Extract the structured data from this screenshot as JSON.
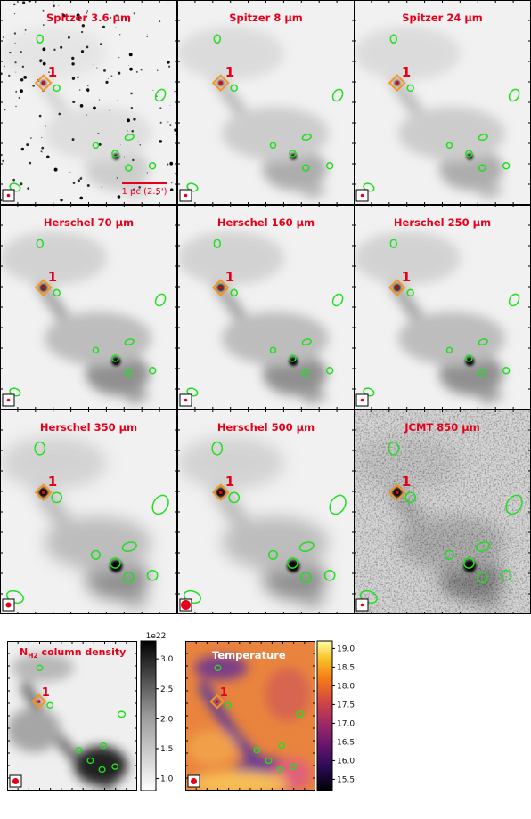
{
  "chart_data": {
    "type": "image-grid",
    "panels": [
      {
        "title": "Spitzer 3.6 µm",
        "style": "stars",
        "beam": "small"
      },
      {
        "title": "Spitzer 8 µm",
        "style": "mid",
        "beam": "small"
      },
      {
        "title": "Spitzer 24 µm",
        "style": "mid",
        "beam": "small"
      },
      {
        "title": "Herschel 70 µm",
        "style": "smooth",
        "beam": "small"
      },
      {
        "title": "Herschel 160 µm",
        "style": "smooth",
        "beam": "small"
      },
      {
        "title": "Herschel 250 µm",
        "style": "smooth",
        "beam": "small"
      },
      {
        "title": "Herschel 350 µm",
        "style": "smooth",
        "beam": "medium"
      },
      {
        "title": "Herschel 500 µm",
        "style": "smooth",
        "beam": "large"
      },
      {
        "title": "JCMT 850 µm",
        "style": "noisy",
        "beam": "small"
      }
    ],
    "source_label": "1",
    "scale_bar": "1 pc (2.5')",
    "column_density": {
      "title_base": "N",
      "title_sub": "H2",
      "title_rest": " column density",
      "exponent": "1e22",
      "ticks": [
        "3.0",
        "2.5",
        "2.0",
        "1.5",
        "1.0"
      ],
      "tick_values": [
        3.0,
        2.5,
        2.0,
        1.5,
        1.0
      ],
      "range": [
        0.8,
        3.3
      ],
      "colormap": "gray_r"
    },
    "temperature": {
      "title": "Temperature",
      "ticks": [
        "19.0",
        "18.5",
        "18.0",
        "17.5",
        "17.0",
        "16.5",
        "16.0",
        "15.5"
      ],
      "tick_values": [
        19.0,
        18.5,
        18.0,
        17.5,
        17.0,
        16.5,
        16.0,
        15.5
      ],
      "range": [
        15.2,
        19.2
      ],
      "colormap": "inferno"
    },
    "colors": {
      "title": "#e8001a",
      "core_marker": "#f5941e",
      "ellipses": "#22dd22"
    }
  }
}
